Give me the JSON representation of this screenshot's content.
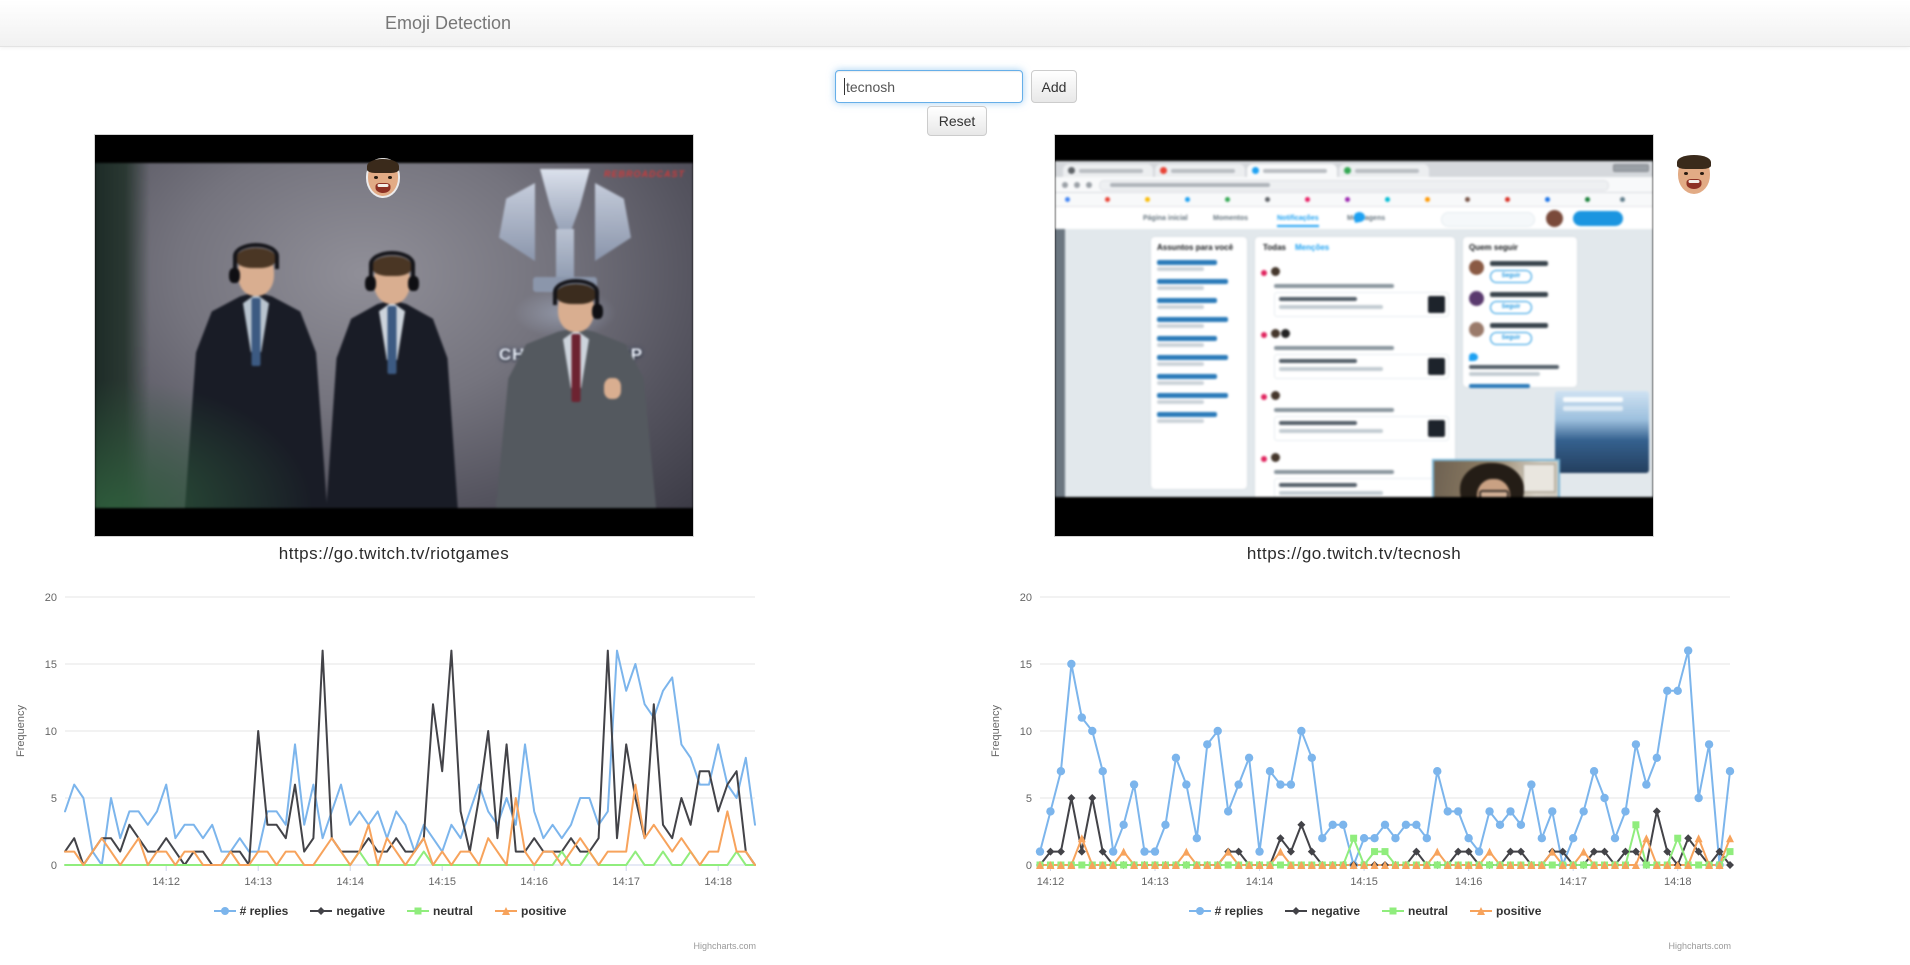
{
  "app": {
    "title": "Emoji Detection"
  },
  "form": {
    "input_value": "tecnosh",
    "add_label": "Add",
    "reset_label": "Reset"
  },
  "streams": [
    {
      "caption": "https://go.twitch.tv/riotgames",
      "emote": "laughing-man-face-emote",
      "overlay": {
        "championship_text": "CHAMPIONSHIP",
        "rebroadcast_text": "REBROADCAST"
      }
    },
    {
      "caption": "https://go.twitch.tv/tecnosh",
      "emote": "laughing-man-face-emote",
      "twitter": {
        "nav_home": "Página inicial",
        "nav_moments": "Momentos",
        "nav_notifications": "Notificações",
        "nav_messages": "Mensagens",
        "trends_title": "Assuntos para você",
        "tab_all": "Todas",
        "tab_mentions": "Menções",
        "who_to_follow": "Quem seguir",
        "follow_button": "Seguir"
      }
    }
  ],
  "chart_data": [
    {
      "type": "line",
      "title": "",
      "xlabel": "",
      "ylabel": "Frequency",
      "ylim": [
        0,
        20
      ],
      "yticks": [
        0,
        5,
        10,
        15,
        20
      ],
      "xtick_labels": [
        "14:12",
        "14:13",
        "14:14",
        "14:15",
        "14:16",
        "14:17",
        "14:18"
      ],
      "x_start": "14:10:54",
      "x_interval_seconds": 6,
      "markers": false,
      "grid": true,
      "legend_position": "bottom",
      "credits": "Highcharts.com",
      "series": [
        {
          "name": "# replies",
          "color": "#7cb5ec",
          "marker": "circle",
          "values": [
            4,
            6,
            5,
            1,
            0,
            5,
            2,
            4,
            4,
            3,
            4,
            6,
            2,
            3,
            3,
            2,
            3,
            1,
            1,
            2,
            1,
            1,
            4,
            4,
            3,
            9,
            3,
            6,
            2,
            4,
            6,
            3,
            4,
            3,
            4,
            2,
            4,
            3,
            1,
            3,
            2,
            1,
            3,
            2,
            4,
            6,
            4,
            3,
            5,
            3,
            9,
            4,
            2,
            3,
            2,
            3,
            5,
            5,
            3,
            4,
            16,
            13,
            15,
            12,
            11,
            13,
            14,
            9,
            8,
            6,
            6,
            9,
            6,
            5,
            8,
            3
          ]
        },
        {
          "name": "negative",
          "color": "#434348",
          "marker": "diamond",
          "values": [
            1,
            2,
            0,
            1,
            2,
            2,
            1,
            3,
            2,
            1,
            1,
            2,
            1,
            0,
            1,
            1,
            0,
            0,
            1,
            1,
            0,
            10,
            3,
            3,
            2,
            6,
            1,
            2,
            16,
            2,
            1,
            1,
            1,
            2,
            1,
            1,
            2,
            1,
            1,
            2,
            12,
            7,
            16,
            4,
            1,
            5,
            10,
            2,
            9,
            1,
            1,
            2,
            1,
            1,
            1,
            2,
            1,
            1,
            2,
            16,
            2,
            9,
            5,
            2,
            12,
            3,
            2,
            5,
            3,
            7,
            7,
            4,
            6,
            7,
            1,
            0
          ]
        },
        {
          "name": "neutral",
          "color": "#90ed7d",
          "marker": "square",
          "values": [
            0,
            0,
            0,
            0,
            0,
            0,
            0,
            0,
            0,
            0,
            0,
            0,
            0,
            0,
            0,
            0,
            0,
            0,
            0,
            0,
            0,
            0,
            0,
            0,
            0,
            0,
            0,
            0,
            0,
            0,
            0,
            0,
            1,
            0,
            0,
            0,
            0,
            0,
            0,
            1,
            0,
            0,
            0,
            0,
            0,
            0,
            0,
            0,
            0,
            0,
            0,
            0,
            0,
            0,
            1,
            0,
            0,
            1,
            0,
            0,
            0,
            0,
            1,
            0,
            0,
            1,
            0,
            0,
            1,
            0,
            0,
            0,
            0,
            1,
            0,
            0
          ]
        },
        {
          "name": "positive",
          "color": "#f7a35c",
          "marker": "triangle",
          "values": [
            1,
            1,
            0,
            1,
            2,
            1,
            0,
            1,
            2,
            0,
            1,
            1,
            0,
            1,
            1,
            0,
            0,
            0,
            1,
            0,
            0,
            1,
            1,
            0,
            1,
            1,
            0,
            0,
            1,
            2,
            1,
            0,
            1,
            3,
            0,
            2,
            1,
            0,
            1,
            2,
            0,
            1,
            0,
            1,
            1,
            0,
            2,
            1,
            0,
            5,
            1,
            0,
            1,
            1,
            0,
            1,
            2,
            1,
            0,
            1,
            1,
            1,
            6,
            2,
            3,
            2,
            1,
            2,
            1,
            0,
            1,
            1,
            4,
            1,
            1,
            0
          ]
        }
      ]
    },
    {
      "type": "line",
      "title": "",
      "xlabel": "",
      "ylabel": "Frequency",
      "ylim": [
        0,
        20
      ],
      "yticks": [
        0,
        5,
        10,
        15,
        20
      ],
      "xtick_labels": [
        "14:12",
        "14:13",
        "14:14",
        "14:15",
        "14:16",
        "14:17",
        "14:18"
      ],
      "x_start": "14:11:54",
      "x_interval_seconds": 6,
      "markers": true,
      "grid": true,
      "legend_position": "bottom",
      "credits": "Highcharts.com",
      "series": [
        {
          "name": "# replies",
          "color": "#7cb5ec",
          "marker": "circle",
          "values": [
            1,
            4,
            7,
            15,
            11,
            10,
            7,
            1,
            3,
            6,
            1,
            1,
            3,
            8,
            6,
            2,
            9,
            10,
            4,
            6,
            8,
            1,
            7,
            6,
            6,
            10,
            8,
            2,
            3,
            3,
            0,
            2,
            2,
            3,
            2,
            3,
            3,
            2,
            7,
            4,
            4,
            2,
            1,
            4,
            3,
            4,
            3,
            6,
            2,
            4,
            0,
            2,
            4,
            7,
            5,
            2,
            4,
            9,
            6,
            8,
            13,
            13,
            16,
            5,
            9,
            0,
            7
          ]
        },
        {
          "name": "negative",
          "color": "#434348",
          "marker": "diamond",
          "values": [
            0,
            1,
            1,
            5,
            1,
            5,
            1,
            0,
            0,
            0,
            0,
            0,
            0,
            0,
            0,
            0,
            0,
            0,
            1,
            1,
            0,
            0,
            0,
            2,
            1,
            3,
            1,
            0,
            0,
            0,
            0,
            0,
            0,
            0,
            0,
            0,
            1,
            0,
            0,
            0,
            1,
            1,
            0,
            0,
            0,
            1,
            1,
            0,
            0,
            1,
            1,
            0,
            0,
            1,
            1,
            0,
            1,
            1,
            0,
            4,
            1,
            0,
            2,
            1,
            0,
            1,
            0
          ]
        },
        {
          "name": "neutral",
          "color": "#90ed7d",
          "marker": "square",
          "values": [
            0,
            0,
            0,
            0,
            0,
            0,
            0,
            0,
            0,
            0,
            0,
            0,
            0,
            0,
            0,
            0,
            0,
            0,
            0,
            0,
            0,
            0,
            0,
            0,
            0,
            0,
            0,
            0,
            0,
            0,
            2,
            0,
            1,
            1,
            0,
            0,
            0,
            0,
            0,
            0,
            0,
            0,
            0,
            0,
            0,
            0,
            0,
            0,
            0,
            0,
            0,
            0,
            0,
            0,
            0,
            0,
            0,
            3,
            0,
            0,
            0,
            2,
            0,
            0,
            0,
            0,
            1
          ]
        },
        {
          "name": "positive",
          "color": "#f7a35c",
          "marker": "triangle",
          "values": [
            0,
            0,
            0,
            0,
            2,
            0,
            0,
            0,
            1,
            0,
            0,
            0,
            0,
            0,
            1,
            0,
            0,
            0,
            1,
            0,
            0,
            0,
            0,
            1,
            0,
            0,
            0,
            0,
            0,
            0,
            0,
            0,
            0,
            0,
            0,
            0,
            0,
            0,
            1,
            0,
            0,
            0,
            0,
            1,
            0,
            0,
            0,
            0,
            0,
            1,
            0,
            0,
            1,
            0,
            0,
            0,
            0,
            0,
            2,
            0,
            0,
            0,
            0,
            2,
            0,
            0,
            2
          ]
        }
      ]
    }
  ]
}
